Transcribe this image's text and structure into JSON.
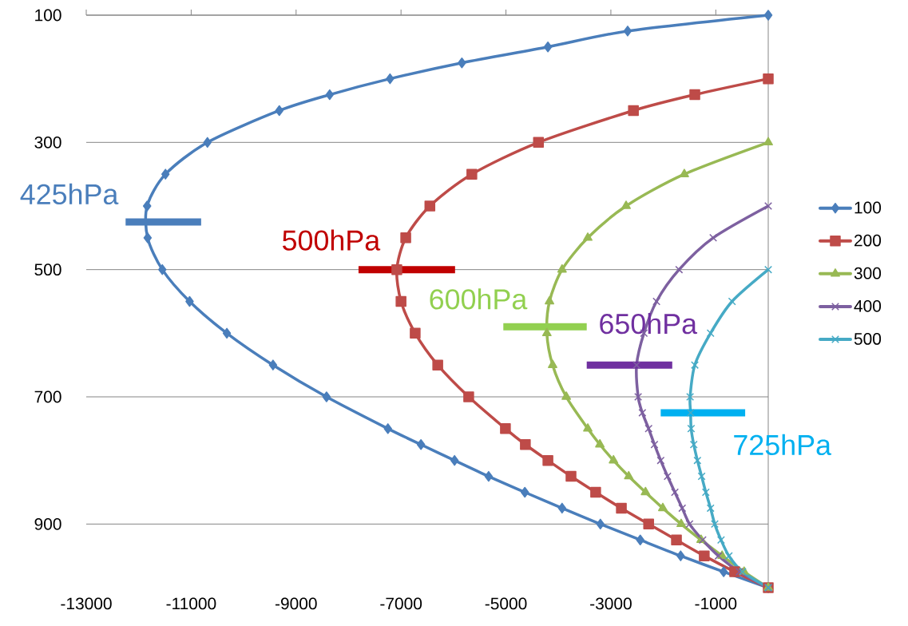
{
  "chart_data": {
    "type": "line",
    "xlim": [
      -13000,
      0
    ],
    "ylim": [
      1000,
      100
    ],
    "xticks": [
      -13000,
      -11000,
      -9000,
      -7000,
      -5000,
      -3000,
      -1000
    ],
    "yticks": [
      100,
      300,
      500,
      700,
      900
    ],
    "grid": "y",
    "legend": "right",
    "series": [
      {
        "name": "100",
        "color": "#4a7ebb",
        "marker": "diamond",
        "x": [
          0,
          -2680,
          -4200,
          -5840,
          -7210,
          -8360,
          -9320,
          -10690,
          -11490,
          -11840,
          -11830,
          -11550,
          -11030,
          -10320,
          -9440,
          -8420,
          -7250,
          -6620,
          -5980,
          -5330,
          -4640,
          -3930,
          -3200,
          -2440,
          -1670,
          -850,
          0
        ],
        "values": [
          100,
          125,
          150,
          175,
          200,
          225,
          250,
          300,
          350,
          400,
          450,
          500,
          550,
          600,
          650,
          700,
          750,
          775,
          800,
          825,
          850,
          875,
          900,
          925,
          950,
          975,
          1000
        ]
      },
      {
        "name": "200",
        "color": "#be4b48",
        "marker": "square",
        "x": [
          0,
          -1400,
          -2570,
          -4380,
          -5650,
          -6450,
          -6910,
          -7080,
          -7000,
          -6730,
          -6300,
          -5710,
          -5010,
          -4630,
          -4200,
          -3760,
          -3290,
          -2800,
          -2280,
          -1750,
          -1220,
          -640,
          0
        ],
        "values": [
          200,
          225,
          250,
          300,
          350,
          400,
          450,
          500,
          550,
          600,
          650,
          700,
          750,
          775,
          800,
          825,
          850,
          875,
          900,
          925,
          950,
          975,
          1000
        ]
      },
      {
        "name": "300",
        "color": "#98b954",
        "marker": "triangle",
        "x": [
          0,
          -1600,
          -2710,
          -3440,
          -3930,
          -4170,
          -4220,
          -4110,
          -3850,
          -3440,
          -3210,
          -2950,
          -2660,
          -2340,
          -2010,
          -1660,
          -1280,
          -880,
          -460,
          0
        ],
        "values": [
          300,
          350,
          400,
          450,
          500,
          550,
          600,
          650,
          700,
          750,
          775,
          800,
          825,
          850,
          875,
          900,
          925,
          950,
          975,
          1000
        ]
      },
      {
        "name": "400",
        "color": "#7d60a0",
        "marker": "cross",
        "x": [
          0,
          -1050,
          -1700,
          -2130,
          -2370,
          -2510,
          -2480,
          -2400,
          -2280,
          -2170,
          -2050,
          -1920,
          -1780,
          -1640,
          -1500,
          -1250,
          -950,
          -550,
          0
        ],
        "values": [
          400,
          450,
          500,
          550,
          600,
          650,
          700,
          725,
          750,
          775,
          800,
          825,
          850,
          875,
          900,
          925,
          950,
          975,
          1000
        ]
      },
      {
        "name": "500",
        "color": "#46aac5",
        "marker": "cross",
        "x": [
          0,
          -690,
          -1100,
          -1400,
          -1490,
          -1480,
          -1470,
          -1420,
          -1350,
          -1270,
          -1190,
          -1100,
          -1020,
          -900,
          -750,
          -490,
          0
        ],
        "values": [
          500,
          550,
          600,
          650,
          700,
          725,
          750,
          775,
          800,
          825,
          850,
          875,
          900,
          925,
          950,
          975,
          1000
        ]
      },
      {
        "type": "line",
        "color": "#4a7ebb",
        "x": [
          -12250,
          -10810
        ],
        "values": [
          425,
          425
        ]
      },
      {
        "type": "line",
        "color": "#c00000",
        "x": [
          -7810,
          -5970
        ],
        "values": [
          500,
          500
        ]
      },
      {
        "type": "line",
        "color": "#92d050",
        "x": [
          -5050,
          -3460
        ],
        "values": [
          590,
          590
        ]
      },
      {
        "type": "line",
        "color": "#7030a0",
        "x": [
          -3460,
          -1830
        ],
        "values": [
          650,
          650
        ]
      },
      {
        "type": "line",
        "color": "#00b0f0",
        "x": [
          -2050,
          -440
        ],
        "values": [
          725,
          725
        ]
      }
    ],
    "annotations": [
      {
        "text": "425hPa",
        "x": -11530,
        "y": 425
      },
      {
        "text": "500hPa",
        "x": -6890,
        "y": 500
      },
      {
        "text": "600hPa",
        "x": -4255,
        "y": 590
      },
      {
        "text": "650hPa",
        "x": -2645,
        "y": 650
      },
      {
        "text": "725hPa",
        "x": -1245,
        "y": 725
      }
    ]
  }
}
